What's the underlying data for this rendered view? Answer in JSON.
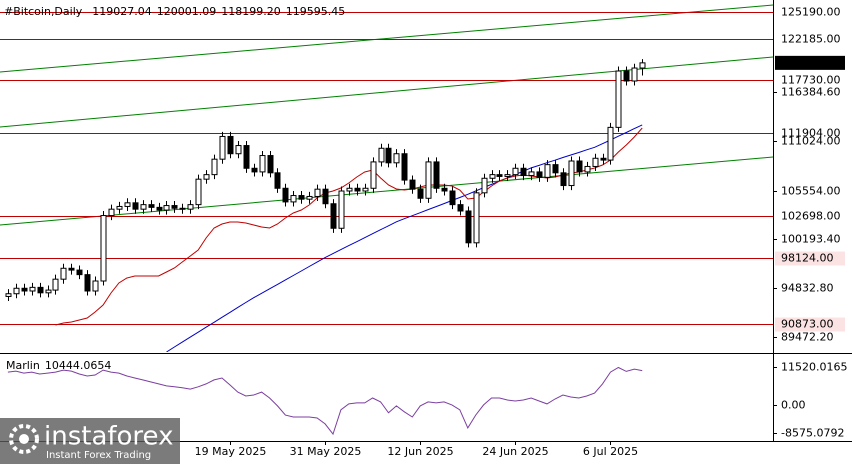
{
  "chart_data": [
    {
      "type": "candlestick",
      "title": "#Bitcoin,Daily",
      "header_ohlc": [
        "119027.04",
        "120001.09",
        "118199.20",
        "119595.45"
      ],
      "categories": [
        null,
        null,
        null,
        null,
        null,
        null,
        null,
        null,
        null,
        null,
        null,
        null,
        null,
        null,
        null,
        null,
        null,
        null,
        null,
        null,
        null,
        null,
        null,
        null,
        null,
        null,
        null,
        null,
        "19 May 2025",
        null,
        null,
        null,
        null,
        null,
        null,
        null,
        null,
        null,
        null,
        null,
        "31 May 2025",
        null,
        null,
        null,
        null,
        null,
        null,
        null,
        null,
        null,
        null,
        null,
        "12 Jun 2025",
        null,
        null,
        null,
        null,
        null,
        null,
        null,
        null,
        null,
        null,
        null,
        "24 Jun 2025",
        null,
        null,
        null,
        null,
        null,
        null,
        null,
        null,
        null,
        null,
        null,
        "6 Jul 2025",
        null,
        null,
        null,
        null
      ],
      "open": [
        93900,
        94200,
        94800,
        94500,
        94900,
        94300,
        94600,
        95800,
        97000,
        96800,
        96300,
        94500,
        95600,
        102800,
        103500,
        103800,
        104200,
        103500,
        104000,
        103700,
        103400,
        103900,
        103600,
        103500,
        104000,
        106800,
        107300,
        109000,
        111500,
        109600,
        110500,
        108000,
        107600,
        109400,
        107500,
        105800,
        104300,
        105000,
        104600,
        104900,
        105700,
        104100,
        101400,
        105500,
        105800,
        105500,
        105800,
        108700,
        110200,
        108600,
        109600,
        106700,
        105700,
        104700,
        108700,
        105800,
        105500,
        104000,
        103300,
        99800,
        105300,
        106900,
        107300,
        107100,
        107300,
        108000,
        107200,
        107600,
        107000,
        108400,
        107500,
        106100,
        108800,
        107600,
        108200,
        109100,
        108900,
        112500,
        118700,
        117600,
        119027.04
      ],
      "high": [
        94700,
        95300,
        95300,
        95400,
        95400,
        95100,
        96300,
        97500,
        97500,
        97300,
        96800,
        96100,
        103300,
        104000,
        104300,
        104700,
        104700,
        104500,
        104500,
        104200,
        104400,
        104400,
        104100,
        104500,
        107300,
        107800,
        109500,
        112000,
        112000,
        111000,
        111000,
        108500,
        109900,
        109900,
        108000,
        106300,
        105500,
        105500,
        105400,
        106200,
        106200,
        104600,
        106000,
        106300,
        106300,
        106300,
        109200,
        110700,
        110700,
        110100,
        110100,
        107200,
        106200,
        109200,
        109200,
        106300,
        106000,
        104500,
        103800,
        105800,
        107400,
        107800,
        107800,
        107800,
        108500,
        108500,
        108100,
        108100,
        108900,
        108900,
        108000,
        109300,
        109300,
        108700,
        109600,
        109600,
        113000,
        119200,
        119200,
        119500,
        120001.09
      ],
      "low": [
        93400,
        93700,
        94000,
        94000,
        93800,
        93800,
        94100,
        95300,
        96300,
        95800,
        94000,
        94000,
        95100,
        102300,
        103000,
        103300,
        103000,
        103000,
        103200,
        102900,
        102900,
        103100,
        103000,
        103000,
        103500,
        106300,
        106800,
        108500,
        109100,
        109100,
        107500,
        107100,
        107100,
        107000,
        105300,
        103800,
        103800,
        104100,
        104100,
        104400,
        103600,
        100900,
        100900,
        105000,
        105000,
        105000,
        105300,
        108200,
        108100,
        108100,
        106200,
        105200,
        104200,
        104200,
        105300,
        105000,
        103500,
        102800,
        99300,
        99300,
        104800,
        106400,
        106600,
        106600,
        106800,
        106700,
        106700,
        106500,
        106500,
        107000,
        105600,
        105600,
        107100,
        107100,
        107700,
        108400,
        108400,
        112000,
        117100,
        117100,
        118199.2
      ],
      "close": [
        94200,
        94800,
        94500,
        94900,
        94300,
        94600,
        95800,
        97000,
        96800,
        96300,
        94500,
        95600,
        102800,
        103500,
        103800,
        104200,
        103500,
        104000,
        103700,
        103400,
        103900,
        103600,
        103500,
        104000,
        106800,
        107300,
        109000,
        111500,
        109600,
        110500,
        108000,
        107600,
        109400,
        107500,
        105800,
        104300,
        105000,
        104600,
        104900,
        105700,
        104100,
        101400,
        105500,
        105800,
        105500,
        105800,
        108700,
        110200,
        108600,
        109600,
        106700,
        105700,
        104700,
        108700,
        105800,
        105500,
        104000,
        103300,
        99800,
        105300,
        106900,
        107300,
        107100,
        107300,
        108000,
        107200,
        107600,
        107000,
        108400,
        107500,
        106100,
        108800,
        107600,
        108200,
        109100,
        108900,
        112500,
        118700,
        117600,
        119027.04,
        119595.45
      ],
      "overlays": [
        {
          "color": "#0000c8",
          "values": [
            null,
            null,
            null,
            null,
            null,
            null,
            null,
            null,
            null,
            null,
            null,
            null,
            null,
            null,
            null,
            null,
            null,
            null,
            null,
            null,
            87790,
            88340,
            88880,
            89430,
            89970,
            90520,
            91060,
            91610,
            92150,
            92700,
            93240,
            93760,
            94250,
            94740,
            95230,
            95720,
            96210,
            96700,
            97190,
            97680,
            98170,
            98610,
            99050,
            99490,
            99920,
            100360,
            100800,
            101240,
            101670,
            102110,
            102450,
            102780,
            103110,
            103450,
            103780,
            104110,
            104450,
            104780,
            105140,
            105500,
            105870,
            106230,
            106590,
            106950,
            107320,
            107680,
            108040,
            108320,
            108610,
            108890,
            109180,
            109460,
            109740,
            110030,
            110310,
            110700,
            111110,
            111530,
            111940,
            112360,
            112770
          ]
        },
        {
          "color": "#c00000",
          "values": [
            null,
            null,
            null,
            null,
            null,
            null,
            90760,
            90980,
            91090,
            91310,
            91530,
            92190,
            92960,
            94280,
            95380,
            95930,
            96150,
            96150,
            96150,
            96150,
            96590,
            97030,
            97690,
            98350,
            99010,
            100330,
            101430,
            101870,
            102090,
            102090,
            101980,
            101760,
            101540,
            101430,
            101870,
            102530,
            103080,
            103410,
            103960,
            104730,
            105280,
            105500,
            105830,
            106380,
            107040,
            107590,
            107810,
            106930,
            106160,
            105720,
            105610,
            105720,
            105940,
            106160,
            106160,
            106160,
            106050,
            105610,
            104620,
            104730,
            105390,
            106050,
            106600,
            106930,
            107150,
            107260,
            107150,
            107040,
            106930,
            107040,
            107260,
            107480,
            107590,
            107810,
            108030,
            108360,
            108910,
            109790,
            110560,
            111440,
            112430
          ]
        }
      ],
      "trendlines": [
        {
          "color": "#008000",
          "ends": [
            118590,
            125960
          ]
        },
        {
          "color": "#008000",
          "ends": [
            112540,
            120240
          ]
        },
        {
          "color": "#008000",
          "ends": [
            101760,
            109240
          ]
        }
      ],
      "levels": [
        {
          "value": 125190,
          "label": "125190.00"
        },
        {
          "value": 122185,
          "label": "122185.00"
        },
        {
          "value": 117730,
          "label": "117730.00"
        },
        {
          "value": 111904,
          "label": "111904.00"
        },
        {
          "value": 102698,
          "label": "102698.00"
        },
        {
          "value": 98124,
          "label": "98124.00"
        },
        {
          "value": 90873,
          "label": "90873.00"
        }
      ],
      "level_color": "#c00000",
      "xlim": [
        -1,
        96.5
      ],
      "ylim": [
        87790,
        126510
      ],
      "yticks": [
        {
          "value": 116384.6,
          "label": "116384.60"
        },
        {
          "value": 111024,
          "label": "111024.00"
        },
        {
          "value": 105554,
          "label": "105554.00"
        },
        {
          "value": 100193.4,
          "label": "100193.40"
        },
        {
          "value": 94832.8,
          "label": "94832.80"
        },
        {
          "value": 89472.2,
          "label": "89472.20"
        }
      ],
      "grid": false
    },
    {
      "type": "line",
      "name": "Marlin",
      "color": "#7b3fa0",
      "values": [
        10000,
        10300,
        9700,
        10000,
        9400,
        9700,
        10000,
        10600,
        10300,
        9400,
        8800,
        9100,
        10600,
        10000,
        9700,
        8800,
        8200,
        7600,
        7000,
        6400,
        5800,
        5500,
        5200,
        4800,
        5500,
        6400,
        7600,
        8200,
        6100,
        3900,
        2700,
        3000,
        3900,
        2100,
        -300,
        -3100,
        -3700,
        -3700,
        -3700,
        -4000,
        -5800,
        -8900,
        -1500,
        300,
        600,
        600,
        2100,
        900,
        -2400,
        -300,
        -2100,
        -3700,
        -300,
        900,
        600,
        900,
        0,
        -1500,
        -7000,
        -3100,
        0,
        2100,
        2100,
        1500,
        1200,
        1500,
        2100,
        1200,
        300,
        1800,
        3000,
        2400,
        2100,
        2700,
        3600,
        6400,
        10000,
        11400,
        10200,
        10900,
        10444.0654
      ],
      "ylim": [
        -11000,
        15200
      ],
      "yticks": [
        11520.0165,
        {
          "value": 0,
          "label": "0.00"
        },
        -8575.0792
      ]
    }
  ],
  "watermark": {
    "brand": "instaforex",
    "tagline": "Instant Forex Trading"
  }
}
